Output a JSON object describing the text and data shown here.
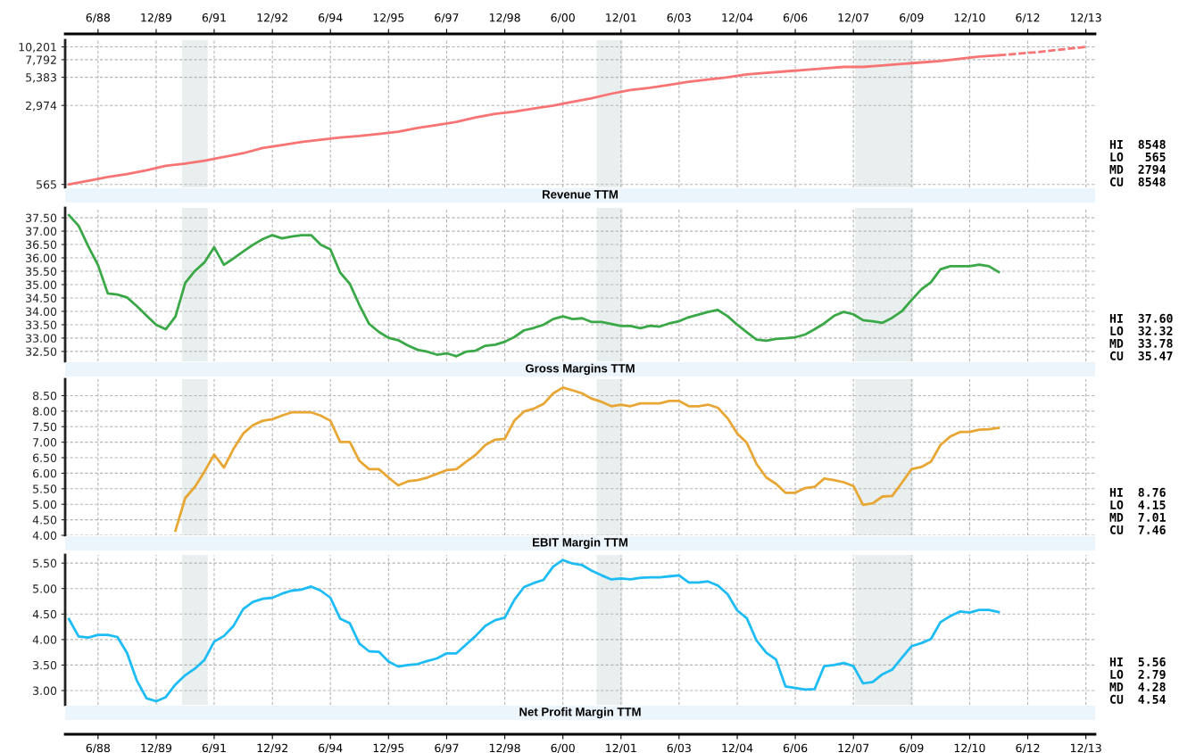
{
  "chart_data": [
    {
      "type": "line",
      "title": "Revenue TTM",
      "log": true,
      "grid": true,
      "xlim": [
        "1987-07-27",
        "2014-02-26"
      ],
      "xticks": [
        {
          "value": "1988-06",
          "label": "6/88"
        },
        {
          "value": "1989-12",
          "label": "12/89"
        },
        {
          "value": "1991-06",
          "label": "6/91"
        },
        {
          "value": "1992-12",
          "label": "12/92"
        },
        {
          "value": "1994-06",
          "label": "6/94"
        },
        {
          "value": "1995-12",
          "label": "12/95"
        },
        {
          "value": "1997-06",
          "label": "6/97"
        },
        {
          "value": "1998-12",
          "label": "12/98"
        },
        {
          "value": "2000-06",
          "label": "6/00"
        },
        {
          "value": "2001-12",
          "label": "12/01"
        },
        {
          "value": "2003-06",
          "label": "6/03"
        },
        {
          "value": "2004-12",
          "label": "12/04"
        },
        {
          "value": "2006-06",
          "label": "6/06"
        },
        {
          "value": "2007-12",
          "label": "12/07"
        },
        {
          "value": "2009-06",
          "label": "6/09"
        },
        {
          "value": "2010-12",
          "label": "12/10"
        },
        {
          "value": "2012-06",
          "label": "6/12"
        },
        {
          "value": "2013-12",
          "label": "12/13"
        }
      ],
      "ylim": [
        531,
        11750
      ],
      "yticks": [
        565,
        {
          "value": 2974,
          "label": "2,974"
        },
        {
          "value": 5383,
          "label": "5,383"
        },
        {
          "value": 7792,
          "label": "7,792"
        },
        {
          "value": 10201,
          "label": "10,201"
        }
      ],
      "bands": [
        {
          "axis": "x",
          "from": "1990-08-01",
          "to": "1991-04-01",
          "label": null,
          "color": "#e9efee"
        },
        {
          "axis": "x",
          "from": "2001-04-15",
          "to": "2001-12-15",
          "label": null,
          "color": "#e9efee"
        },
        {
          "axis": "x",
          "from": "2007-12-18",
          "to": "2009-06-18",
          "label": null,
          "color": "#e9efee"
        }
      ],
      "annotations": [
        "HI  8548",
        "LO   565",
        "MD  2794",
        "CU  8548"
      ],
      "series": [
        {
          "color": "#f87474",
          "line_style": "solid",
          "x": [
            "1987-09",
            "1988-03",
            "1988-09",
            "1989-03",
            "1989-09",
            "1990-03",
            "1990-09",
            "1991-03",
            "1991-09",
            "1992-03",
            "1992-09",
            "1993-03",
            "1993-09",
            "1994-03",
            "1994-09",
            "1995-03",
            "1995-09",
            "1996-03",
            "1996-09",
            "1997-03",
            "1997-09",
            "1998-03",
            "1998-09",
            "1999-03",
            "1999-09",
            "2000-03",
            "2000-09",
            "2001-03",
            "2001-09",
            "2002-03",
            "2002-09",
            "2003-03",
            "2003-09",
            "2004-03",
            "2004-09",
            "2005-03",
            "2005-09",
            "2006-03",
            "2006-09",
            "2007-03",
            "2007-09",
            "2008-03",
            "2008-09",
            "2009-03",
            "2009-09",
            "2010-03",
            "2010-09",
            "2011-03",
            "2011-09"
          ],
          "values": [
            565,
            611,
            661,
            703,
            760,
            835,
            875,
            931,
            1007,
            1089,
            1216,
            1294,
            1378,
            1444,
            1514,
            1563,
            1637,
            1715,
            1855,
            1974,
            2102,
            2308,
            2496,
            2616,
            2786,
            2964,
            3206,
            3467,
            3811,
            4120,
            4317,
            4596,
            4894,
            5128,
            5374,
            5719,
            5902,
            6091,
            6285,
            6486,
            6690,
            6690,
            6900,
            7120,
            7350,
            7590,
            7950,
            8330,
            8548
          ]
        },
        {
          "color": "#f87474",
          "line_style": "dashed",
          "x": [
            "2011-09",
            "2012-09",
            "2013-12"
          ],
          "values": [
            8548,
            9140,
            10201
          ]
        }
      ]
    },
    {
      "type": "line",
      "title": "Gross Margins TTM",
      "grid": true,
      "tick_labels": "y",
      "xlim": [
        "1987-07-27",
        "2014-02-26"
      ],
      "xticks": [
        "1988-06",
        "1989-12",
        "1991-06",
        "1992-12",
        "1994-06",
        "1995-12",
        "1997-06",
        "1998-12",
        "2000-06",
        "2001-12",
        "2003-06",
        "2004-12",
        "2006-06",
        "2007-12",
        "2009-06",
        "2010-12",
        "2012-06",
        "2013-12"
      ],
      "ylim": [
        32.13,
        37.87
      ],
      "yticks": [
        {
          "value": 32.5,
          "label": "32.50"
        },
        {
          "value": 33,
          "label": "33.00"
        },
        {
          "value": 33.5,
          "label": "33.50"
        },
        {
          "value": 34,
          "label": "34.00"
        },
        {
          "value": 34.5,
          "label": "34.50"
        },
        {
          "value": 35,
          "label": "35.00"
        },
        {
          "value": 35.5,
          "label": "35.50"
        },
        {
          "value": 36,
          "label": "36.00"
        },
        {
          "value": 36.5,
          "label": "36.50"
        },
        {
          "value": 37,
          "label": "37.00"
        },
        {
          "value": 37.5,
          "label": "37.50"
        }
      ],
      "bands": [
        {
          "axis": "x",
          "from": "1990-08-01",
          "to": "1991-04-01",
          "label": null,
          "color": "#e9efee"
        },
        {
          "axis": "x",
          "from": "2001-04-15",
          "to": "2001-12-15",
          "label": null,
          "color": "#e9efee"
        },
        {
          "axis": "x",
          "from": "2007-12-18",
          "to": "2009-06-18",
          "label": null,
          "color": "#e9efee"
        }
      ],
      "annotations": [
        "HI  37.60",
        "LO  32.32",
        "MD  33.78",
        "CU  35.47"
      ],
      "x": [
        "1987-09",
        "1987-12",
        "1988-03",
        "1988-06",
        "1988-09",
        "1988-12",
        "1989-03",
        "1989-06",
        "1989-09",
        "1989-12",
        "1990-03",
        "1990-06",
        "1990-09",
        "1990-12",
        "1991-03",
        "1991-06",
        "1991-09",
        "1991-12",
        "1992-03",
        "1992-06",
        "1992-09",
        "1992-12",
        "1993-03",
        "1993-06",
        "1993-09",
        "1993-12",
        "1994-03",
        "1994-06",
        "1994-09",
        "1994-12",
        "1995-03",
        "1995-06",
        "1995-09",
        "1995-12",
        "1996-03",
        "1996-06",
        "1996-09",
        "1996-12",
        "1997-03",
        "1997-06",
        "1997-09",
        "1997-12",
        "1998-03",
        "1998-06",
        "1998-09",
        "1998-12",
        "1999-03",
        "1999-06",
        "1999-09",
        "1999-12",
        "2000-03",
        "2000-06",
        "2000-09",
        "2000-12",
        "2001-03",
        "2001-06",
        "2001-09",
        "2001-12",
        "2002-03",
        "2002-06",
        "2002-09",
        "2002-12",
        "2003-03",
        "2003-06",
        "2003-09",
        "2003-12",
        "2004-03",
        "2004-06",
        "2004-09",
        "2004-12",
        "2005-03",
        "2005-06",
        "2005-09",
        "2005-12",
        "2006-03",
        "2006-06",
        "2006-09",
        "2006-12",
        "2007-03",
        "2007-06",
        "2007-09",
        "2007-12",
        "2008-03",
        "2008-06",
        "2008-09",
        "2008-12",
        "2009-03",
        "2009-06",
        "2009-09",
        "2009-12",
        "2010-03",
        "2010-06",
        "2010-09",
        "2010-12",
        "2011-03",
        "2011-06",
        "2011-09"
      ],
      "series": [
        {
          "color": "#3aa846",
          "values": [
            37.6,
            37.2,
            36.43,
            35.73,
            34.67,
            34.63,
            34.52,
            34.2,
            33.84,
            33.5,
            33.33,
            33.8,
            35.06,
            35.51,
            35.83,
            36.4,
            35.74,
            35.98,
            36.24,
            36.49,
            36.7,
            36.85,
            36.73,
            36.8,
            36.85,
            36.85,
            36.49,
            36.32,
            35.45,
            35.03,
            34.24,
            33.53,
            33.23,
            33.01,
            32.92,
            32.72,
            32.56,
            32.49,
            32.38,
            32.43,
            32.32,
            32.49,
            32.53,
            32.71,
            32.75,
            32.86,
            33.04,
            33.29,
            33.38,
            33.5,
            33.71,
            33.81,
            33.71,
            33.74,
            33.6,
            33.6,
            33.53,
            33.45,
            33.45,
            33.37,
            33.46,
            33.43,
            33.55,
            33.63,
            33.78,
            33.88,
            33.98,
            34.05,
            33.82,
            33.5,
            33.22,
            32.94,
            32.9,
            32.97,
            32.99,
            33.03,
            33.13,
            33.33,
            33.55,
            33.83,
            33.98,
            33.89,
            33.67,
            33.63,
            33.57,
            33.76,
            34.0,
            34.42,
            34.82,
            35.09,
            35.57,
            35.69,
            35.69,
            35.69,
            35.75,
            35.69,
            35.47
          ]
        }
      ]
    },
    {
      "type": "line",
      "title": "EBIT Margin TTM",
      "grid": true,
      "tick_labels": "y",
      "xlim": [
        "1987-07-27",
        "2014-02-26"
      ],
      "xticks": [
        "1988-06",
        "1989-12",
        "1991-06",
        "1992-12",
        "1994-06",
        "1995-12",
        "1997-06",
        "1998-12",
        "2000-06",
        "2001-12",
        "2003-06",
        "2004-12",
        "2006-06",
        "2007-12",
        "2009-06",
        "2010-12",
        "2012-06",
        "2013-12"
      ],
      "ylim": [
        4.0,
        9.03
      ],
      "yticks": [
        {
          "value": 4,
          "label": "4.00"
        },
        {
          "value": 4.5,
          "label": "4.50"
        },
        {
          "value": 5,
          "label": "5.00"
        },
        {
          "value": 5.5,
          "label": "5.50"
        },
        {
          "value": 6,
          "label": "6.00"
        },
        {
          "value": 6.5,
          "label": "6.50"
        },
        {
          "value": 7,
          "label": "7.00"
        },
        {
          "value": 7.5,
          "label": "7.50"
        },
        {
          "value": 8,
          "label": "8.00"
        },
        {
          "value": 8.5,
          "label": "8.50"
        }
      ],
      "bands": [
        {
          "axis": "x",
          "from": "1990-08-01",
          "to": "1991-04-01",
          "label": null,
          "color": "#e9efee"
        },
        {
          "axis": "x",
          "from": "2001-04-15",
          "to": "2001-12-15",
          "label": null,
          "color": "#e9efee"
        },
        {
          "axis": "x",
          "from": "2007-12-18",
          "to": "2009-06-18",
          "label": null,
          "color": "#e9efee"
        }
      ],
      "annotations": [
        "HI  8.76",
        "LO  4.15",
        "MD  7.01",
        "CU  7.46"
      ],
      "series": [
        {
          "color": "#e8a635",
          "x": [
            "1990-06",
            "1990-09",
            "1990-12",
            "1991-03",
            "1991-06",
            "1991-09",
            "1991-12",
            "1992-03",
            "1992-06",
            "1992-09",
            "1992-12",
            "1993-03",
            "1993-06",
            "1993-09",
            "1993-12",
            "1994-03",
            "1994-06",
            "1994-09",
            "1994-12",
            "1995-03",
            "1995-06",
            "1995-09",
            "1995-12",
            "1996-03",
            "1996-06",
            "1996-09",
            "1996-12",
            "1997-03",
            "1997-06",
            "1997-09",
            "1997-12",
            "1998-03",
            "1998-06",
            "1998-09",
            "1998-12",
            "1999-03",
            "1999-06",
            "1999-09",
            "1999-12",
            "2000-03",
            "2000-06",
            "2000-09",
            "2000-12",
            "2001-03",
            "2001-06",
            "2001-09",
            "2001-12",
            "2002-03",
            "2002-06",
            "2002-09",
            "2002-12",
            "2003-03",
            "2003-06",
            "2003-09",
            "2003-12",
            "2004-03",
            "2004-06",
            "2004-09",
            "2004-12",
            "2005-03",
            "2005-06",
            "2005-09",
            "2005-12",
            "2006-03",
            "2006-06",
            "2006-09",
            "2006-12",
            "2007-03",
            "2007-06",
            "2007-09",
            "2007-12",
            "2008-03",
            "2008-06",
            "2008-09",
            "2008-12",
            "2009-03",
            "2009-06",
            "2009-09",
            "2009-12",
            "2010-03",
            "2010-06",
            "2010-09",
            "2010-12",
            "2011-03",
            "2011-06",
            "2011-09"
          ],
          "values": [
            4.15,
            5.2,
            5.56,
            6.05,
            6.6,
            6.18,
            6.79,
            7.28,
            7.55,
            7.69,
            7.74,
            7.86,
            7.96,
            7.96,
            7.96,
            7.86,
            7.69,
            7.01,
            7.01,
            6.4,
            6.13,
            6.13,
            5.86,
            5.61,
            5.74,
            5.78,
            5.86,
            5.98,
            6.1,
            6.13,
            6.37,
            6.59,
            6.91,
            7.08,
            7.11,
            7.69,
            7.99,
            8.08,
            8.23,
            8.57,
            8.76,
            8.67,
            8.57,
            8.4,
            8.3,
            8.16,
            8.21,
            8.16,
            8.25,
            8.25,
            8.25,
            8.33,
            8.33,
            8.16,
            8.16,
            8.21,
            8.11,
            7.77,
            7.28,
            6.98,
            6.3,
            5.86,
            5.66,
            5.37,
            5.37,
            5.52,
            5.56,
            5.83,
            5.78,
            5.71,
            5.59,
            4.98,
            5.03,
            5.25,
            5.27,
            5.69,
            6.13,
            6.2,
            6.37,
            6.91,
            7.18,
            7.33,
            7.33,
            7.4,
            7.42,
            7.46
          ]
        }
      ]
    },
    {
      "type": "line",
      "title": "Net Profit Margin TTM",
      "grid": true,
      "xlim": [
        "1987-07-27",
        "2014-02-26"
      ],
      "xticks": [
        {
          "value": "1988-06",
          "label": "6/88"
        },
        {
          "value": "1989-12",
          "label": "12/89"
        },
        {
          "value": "1991-06",
          "label": "6/91"
        },
        {
          "value": "1992-12",
          "label": "12/92"
        },
        {
          "value": "1994-06",
          "label": "6/94"
        },
        {
          "value": "1995-12",
          "label": "12/95"
        },
        {
          "value": "1997-06",
          "label": "6/97"
        },
        {
          "value": "1998-12",
          "label": "12/98"
        },
        {
          "value": "2000-06",
          "label": "6/00"
        },
        {
          "value": "2001-12",
          "label": "12/01"
        },
        {
          "value": "2003-06",
          "label": "6/03"
        },
        {
          "value": "2004-12",
          "label": "12/04"
        },
        {
          "value": "2006-06",
          "label": "6/06"
        },
        {
          "value": "2007-12",
          "label": "12/07"
        },
        {
          "value": "2009-06",
          "label": "6/09"
        },
        {
          "value": "2010-12",
          "label": "12/10"
        },
        {
          "value": "2012-06",
          "label": "6/12"
        },
        {
          "value": "2013-12",
          "label": "12/13"
        }
      ],
      "ylim": [
        2.72,
        5.66
      ],
      "yticks": [
        {
          "value": 3,
          "label": "3.00"
        },
        {
          "value": 3.5,
          "label": "3.50"
        },
        {
          "value": 4,
          "label": "4.00"
        },
        {
          "value": 4.5,
          "label": "4.50"
        },
        {
          "value": 5,
          "label": "5.00"
        },
        {
          "value": 5.5,
          "label": "5.50"
        }
      ],
      "bands": [
        {
          "axis": "x",
          "from": "1990-08-01",
          "to": "1991-04-01",
          "label": null,
          "color": "#e9efee"
        },
        {
          "axis": "x",
          "from": "2001-04-15",
          "to": "2001-12-15",
          "label": null,
          "color": "#e9efee"
        },
        {
          "axis": "x",
          "from": "2007-12-18",
          "to": "2009-06-18",
          "label": null,
          "color": "#e9efee"
        }
      ],
      "annotations": [
        "HI  5.56",
        "LO  2.79",
        "MD  4.28",
        "CU  4.54"
      ],
      "x": [
        "1987-09",
        "1987-12",
        "1988-03",
        "1988-06",
        "1988-09",
        "1988-12",
        "1989-03",
        "1989-06",
        "1989-09",
        "1989-12",
        "1990-03",
        "1990-06",
        "1990-09",
        "1990-12",
        "1991-03",
        "1991-06",
        "1991-09",
        "1991-12",
        "1992-03",
        "1992-06",
        "1992-09",
        "1992-12",
        "1993-03",
        "1993-06",
        "1993-09",
        "1993-12",
        "1994-03",
        "1994-06",
        "1994-09",
        "1994-12",
        "1995-03",
        "1995-06",
        "1995-09",
        "1995-12",
        "1996-03",
        "1996-06",
        "1996-09",
        "1996-12",
        "1997-03",
        "1997-06",
        "1997-09",
        "1997-12",
        "1998-03",
        "1998-06",
        "1998-09",
        "1998-12",
        "1999-03",
        "1999-06",
        "1999-09",
        "1999-12",
        "2000-03",
        "2000-06",
        "2000-09",
        "2000-12",
        "2001-03",
        "2001-06",
        "2001-09",
        "2001-12",
        "2002-03",
        "2002-06",
        "2002-09",
        "2002-12",
        "2003-03",
        "2003-06",
        "2003-09",
        "2003-12",
        "2004-03",
        "2004-06",
        "2004-09",
        "2004-12",
        "2005-03",
        "2005-06",
        "2005-09",
        "2005-12",
        "2006-03",
        "2006-06",
        "2006-09",
        "2006-12",
        "2007-03",
        "2007-06",
        "2007-09",
        "2007-12",
        "2008-03",
        "2008-06",
        "2008-09",
        "2008-12",
        "2009-03",
        "2009-06",
        "2009-09",
        "2009-12",
        "2010-03",
        "2010-06",
        "2010-09",
        "2010-12",
        "2011-03",
        "2011-06",
        "2011-09"
      ],
      "series": [
        {
          "color": "#1ebcf5",
          "values": [
            4.4,
            4.06,
            4.04,
            4.09,
            4.09,
            4.05,
            3.74,
            3.2,
            2.85,
            2.79,
            2.87,
            3.12,
            3.3,
            3.43,
            3.6,
            3.96,
            4.07,
            4.27,
            4.6,
            4.74,
            4.8,
            4.82,
            4.9,
            4.96,
            4.98,
            5.04,
            4.96,
            4.82,
            4.41,
            4.32,
            3.92,
            3.77,
            3.76,
            3.57,
            3.47,
            3.5,
            3.52,
            3.58,
            3.63,
            3.73,
            3.73,
            3.9,
            4.07,
            4.27,
            4.38,
            4.43,
            4.78,
            5.03,
            5.11,
            5.17,
            5.43,
            5.56,
            5.49,
            5.46,
            5.35,
            5.26,
            5.18,
            5.2,
            5.18,
            5.21,
            5.22,
            5.22,
            5.24,
            5.26,
            5.12,
            5.12,
            5.14,
            5.06,
            4.89,
            4.57,
            4.42,
            3.98,
            3.74,
            3.61,
            3.08,
            3.05,
            3.02,
            3.03,
            3.48,
            3.5,
            3.54,
            3.48,
            3.14,
            3.17,
            3.32,
            3.41,
            3.64,
            3.87,
            3.93,
            4.01,
            4.34,
            4.46,
            4.55,
            4.53,
            4.58,
            4.58,
            4.54
          ]
        }
      ]
    }
  ]
}
